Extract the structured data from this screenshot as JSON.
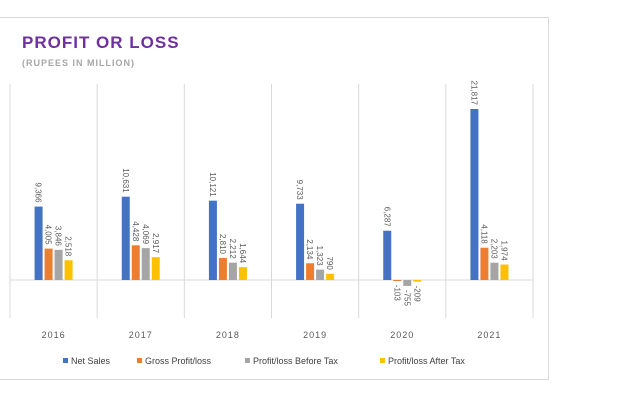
{
  "chart_data": {
    "type": "bar",
    "title": "PROFIT OR LOSS",
    "subtitle": "(RUPEES IN MILLION)",
    "categories": [
      "2016",
      "2017",
      "2018",
      "2019",
      "2020",
      "2021"
    ],
    "series": [
      {
        "name": "Net Sales",
        "color": "#4472c4",
        "values": [
          9366,
          10631,
          10121,
          9733,
          6287,
          21817
        ],
        "labels": [
          "9,366",
          "10,631",
          "10,121",
          "9,733",
          "6,287",
          "21,817"
        ]
      },
      {
        "name": "Gross Profit/loss",
        "color": "#ed7d31",
        "values": [
          4005,
          4428,
          2810,
          2134,
          -103,
          4118
        ],
        "labels": [
          "4,005",
          "4,428",
          "2,810",
          "2,134",
          "-103",
          "4,118"
        ]
      },
      {
        "name": "Profit/loss Before Tax",
        "color": "#a5a5a5",
        "values": [
          3846,
          4069,
          2212,
          1323,
          -755,
          2203
        ],
        "labels": [
          "3,846",
          "4,069",
          "2,212",
          "1,323",
          "-755",
          "2,203"
        ]
      },
      {
        "name": "Profit/loss After Tax",
        "color": "#ffc000",
        "values": [
          2518,
          2917,
          1644,
          790,
          -209,
          1974
        ],
        "labels": [
          "2,518",
          "2,917",
          "1,644",
          "790",
          "-209",
          "1,974"
        ]
      }
    ],
    "grid": "vertical category separators",
    "legend": "bottom"
  }
}
